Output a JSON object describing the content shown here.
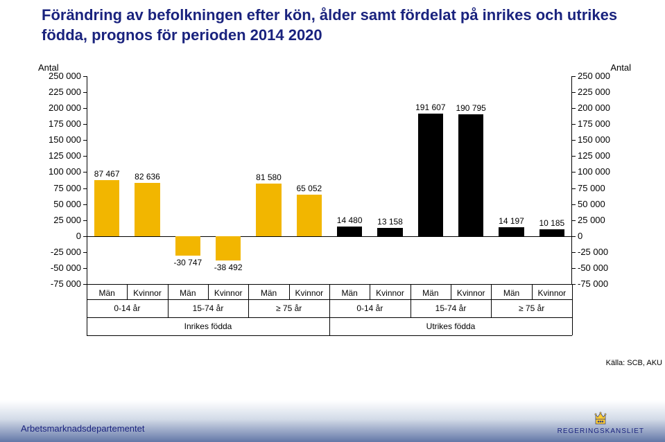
{
  "title": "Förändring av befolkningen efter kön, ålder samt fördelat på inrikes och utrikes födda, prognos för perioden 2014 2020",
  "chart": {
    "type": "bar",
    "y_axis_label_left": "Antal",
    "y_axis_label_right": "Antal",
    "ylim": [
      -75000,
      250000
    ],
    "yticks": [
      250000,
      225000,
      200000,
      175000,
      150000,
      125000,
      100000,
      75000,
      50000,
      25000,
      0,
      -25000,
      -50000,
      -75000
    ],
    "ytick_labels_left": [
      "250 000",
      "225 000",
      "200 000",
      "175 000",
      "150 000",
      "125 000",
      "100 000",
      "75 000",
      "50 000",
      "25 000",
      "0",
      "-25 000",
      "-50 000",
      "-75 000"
    ],
    "ytick_labels_right": [
      "250 000",
      "225 000",
      "200 000",
      "175 000",
      "150 000",
      "125 000",
      "100 000",
      "75 000",
      "50 000",
      "25 000",
      "0",
      "-25 000",
      "-50 000",
      "-75 000"
    ],
    "x_labels": [
      "Män",
      "Kvinnor",
      "Män",
      "Kvinnor",
      "Män",
      "Kvinnor",
      "Män",
      "Kvinnor",
      "Män",
      "Kvinnor",
      "Män",
      "Kvinnor"
    ],
    "group_labels": [
      "0-14 år",
      "15-74 år",
      "≥ 75 år",
      "0-14 år",
      "15-74 år",
      "≥ 75 år"
    ],
    "origin_labels": [
      "Inrikes födda",
      "Utrikes födda"
    ],
    "bars": [
      {
        "value": 87467,
        "label": "87 467",
        "color": "#f2b600"
      },
      {
        "value": 82636,
        "label": "82 636",
        "color": "#f2b600"
      },
      {
        "value": -30747,
        "label": "-30 747",
        "color": "#f2b600"
      },
      {
        "value": -38492,
        "label": "-38 492",
        "color": "#f2b600"
      },
      {
        "value": 81580,
        "label": "81 580",
        "color": "#f2b600"
      },
      {
        "value": 65052,
        "label": "65 052",
        "color": "#f2b600"
      },
      {
        "value": 14480,
        "label": "14 480",
        "color": "#000000"
      },
      {
        "value": 13158,
        "label": "13 158",
        "color": "#000000"
      },
      {
        "value": 191607,
        "label": "191 607",
        "color": "#000000"
      },
      {
        "value": 190795,
        "label": "190 795",
        "color": "#000000"
      },
      {
        "value": 14197,
        "label": "14 197",
        "color": "#000000"
      },
      {
        "value": 10185,
        "label": "10 185",
        "color": "#000000"
      }
    ],
    "source": "Källa: SCB, AKU",
    "background_color": "#ffffff"
  },
  "footer": {
    "department": "Arbetsmarknadsdepartementet",
    "agency": "REGERINGSKANSLIET"
  }
}
